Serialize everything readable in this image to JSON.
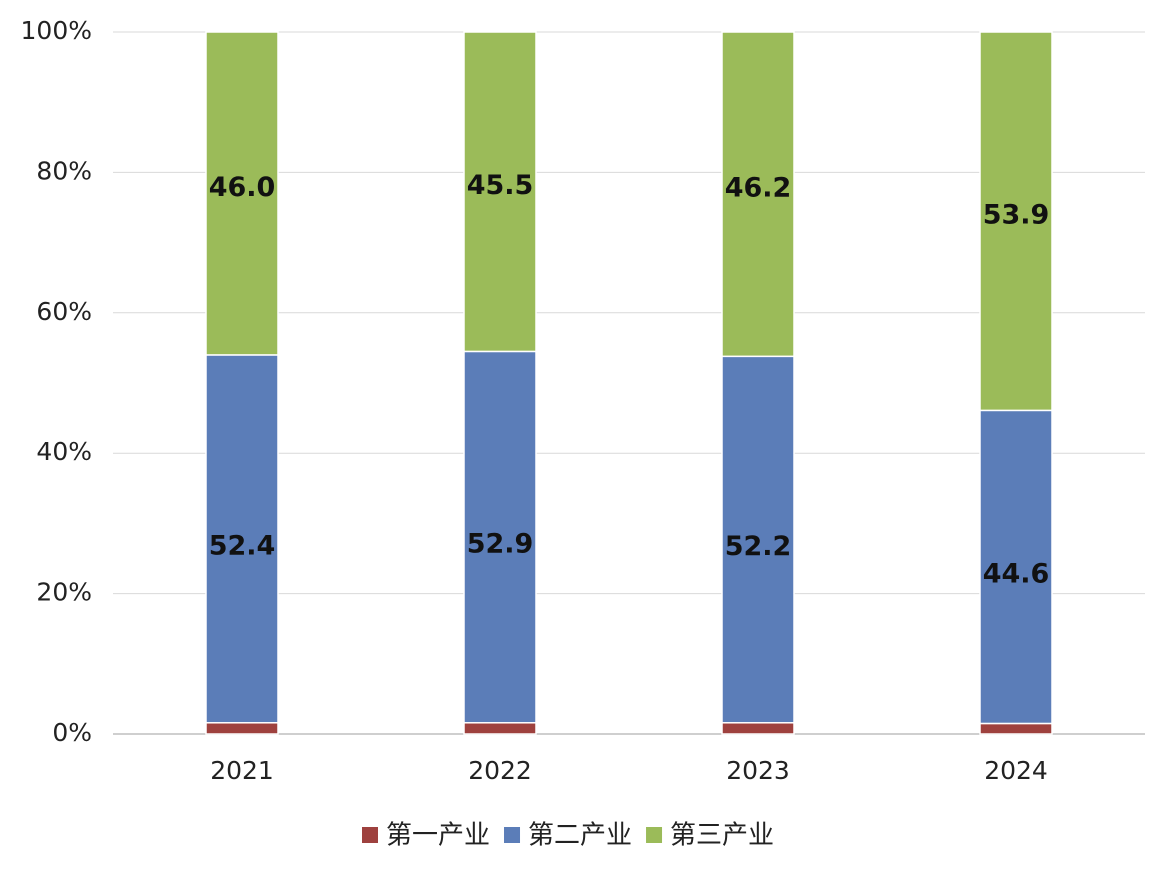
{
  "chart_data": {
    "type": "stacked_bar",
    "categories": [
      "2021",
      "2022",
      "2023",
      "2024"
    ],
    "series": [
      {
        "name": "第一产业",
        "color": "#9e413e",
        "values": [
          1.6,
          1.6,
          1.6,
          1.5
        ]
      },
      {
        "name": "第二产业",
        "color": "#5b7db8",
        "values": [
          52.4,
          52.9,
          52.2,
          44.6
        ]
      },
      {
        "name": "第三产业",
        "color": "#9bbb59",
        "values": [
          46.0,
          45.5,
          46.2,
          53.9
        ],
        "value_labels": [
          "46.0",
          "45.5",
          "46.2",
          "53.9"
        ]
      }
    ],
    "ylim": [
      0,
      100
    ],
    "yticks": [
      {
        "value": 0,
        "label": "0%"
      },
      {
        "value": 20,
        "label": "20%"
      },
      {
        "value": 40,
        "label": "40%"
      },
      {
        "value": 60,
        "label": "60%"
      },
      {
        "value": 80,
        "label": "80%"
      },
      {
        "value": 100,
        "label": "100%"
      }
    ],
    "grid": true,
    "legend": "bottom"
  }
}
